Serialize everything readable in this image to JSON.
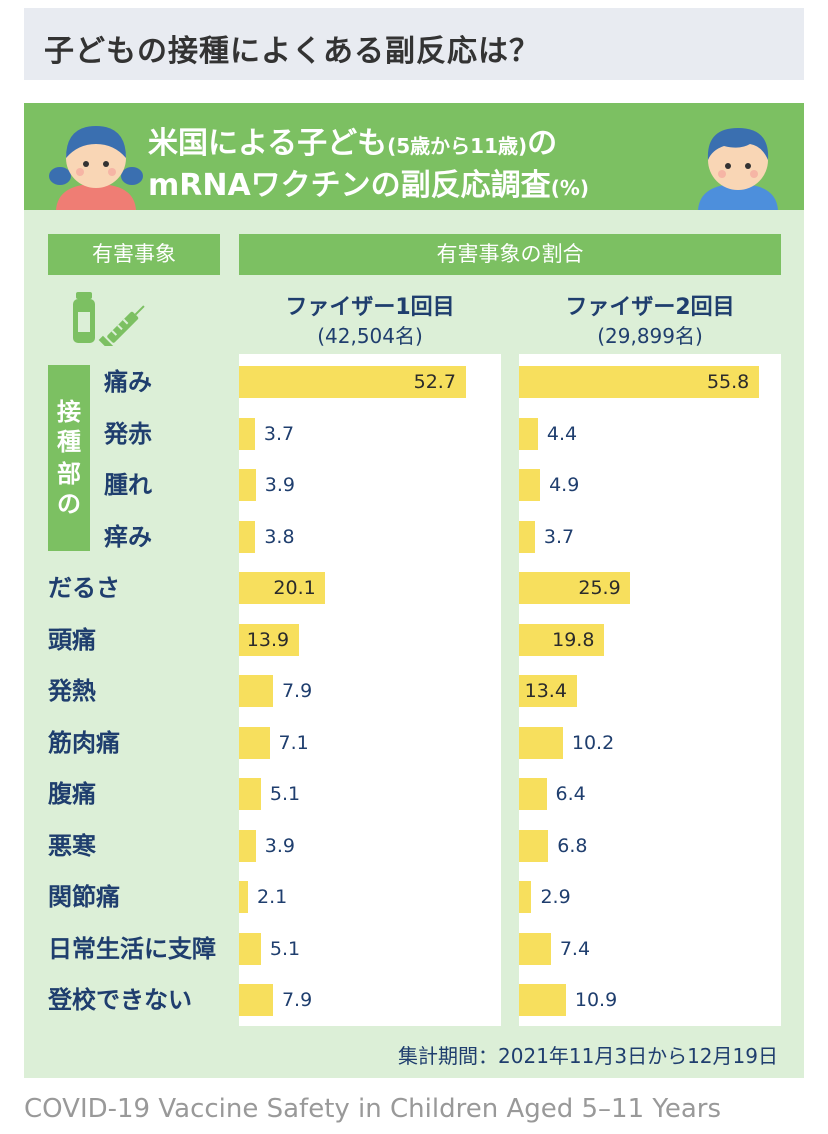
{
  "top_banner": {
    "text": "子どもの接種によくある副反応は？"
  },
  "title": {
    "line1_main": "米国による子ども",
    "line1_small": "(5歳から11歳)",
    "line1_tail": "の",
    "line2_main": "mRNAワクチンの副反応調査",
    "line2_small": "(%)"
  },
  "headers": {
    "events": "有害事象",
    "ratio": "有害事象の割合"
  },
  "site_group_label": [
    "接",
    "種",
    "部",
    "の"
  ],
  "period": "集計期間：2021年11月3日から12月19日",
  "source": "COVID-19 Vaccine Safety in Children Aged 5–11 Years",
  "colors": {
    "panel": "#dcefd7",
    "header": "#7cc062",
    "bar": "#f7df5d",
    "text": "#1f3e6e"
  },
  "chart_data": {
    "type": "bar",
    "orientation": "horizontal",
    "categories": [
      "痛み",
      "発赤",
      "腫れ",
      "痒み",
      "だるさ",
      "頭痛",
      "発熱",
      "筋肉痛",
      "腹痛",
      "悪寒",
      "関節痛",
      "日常生活に支障",
      "登校できない"
    ],
    "series": [
      {
        "name": "ファイザー1回目",
        "n_label": "(42,504名)",
        "values": [
          52.7,
          3.7,
          3.9,
          3.8,
          20.1,
          13.9,
          7.9,
          7.1,
          5.1,
          3.9,
          2.1,
          5.1,
          7.9
        ]
      },
      {
        "name": "ファイザー2回目",
        "n_label": "(29,899名)",
        "values": [
          55.8,
          4.4,
          4.9,
          3.7,
          25.9,
          19.8,
          13.4,
          10.2,
          6.4,
          6.8,
          2.9,
          7.4,
          10.9
        ]
      }
    ],
    "unit": "%"
  }
}
